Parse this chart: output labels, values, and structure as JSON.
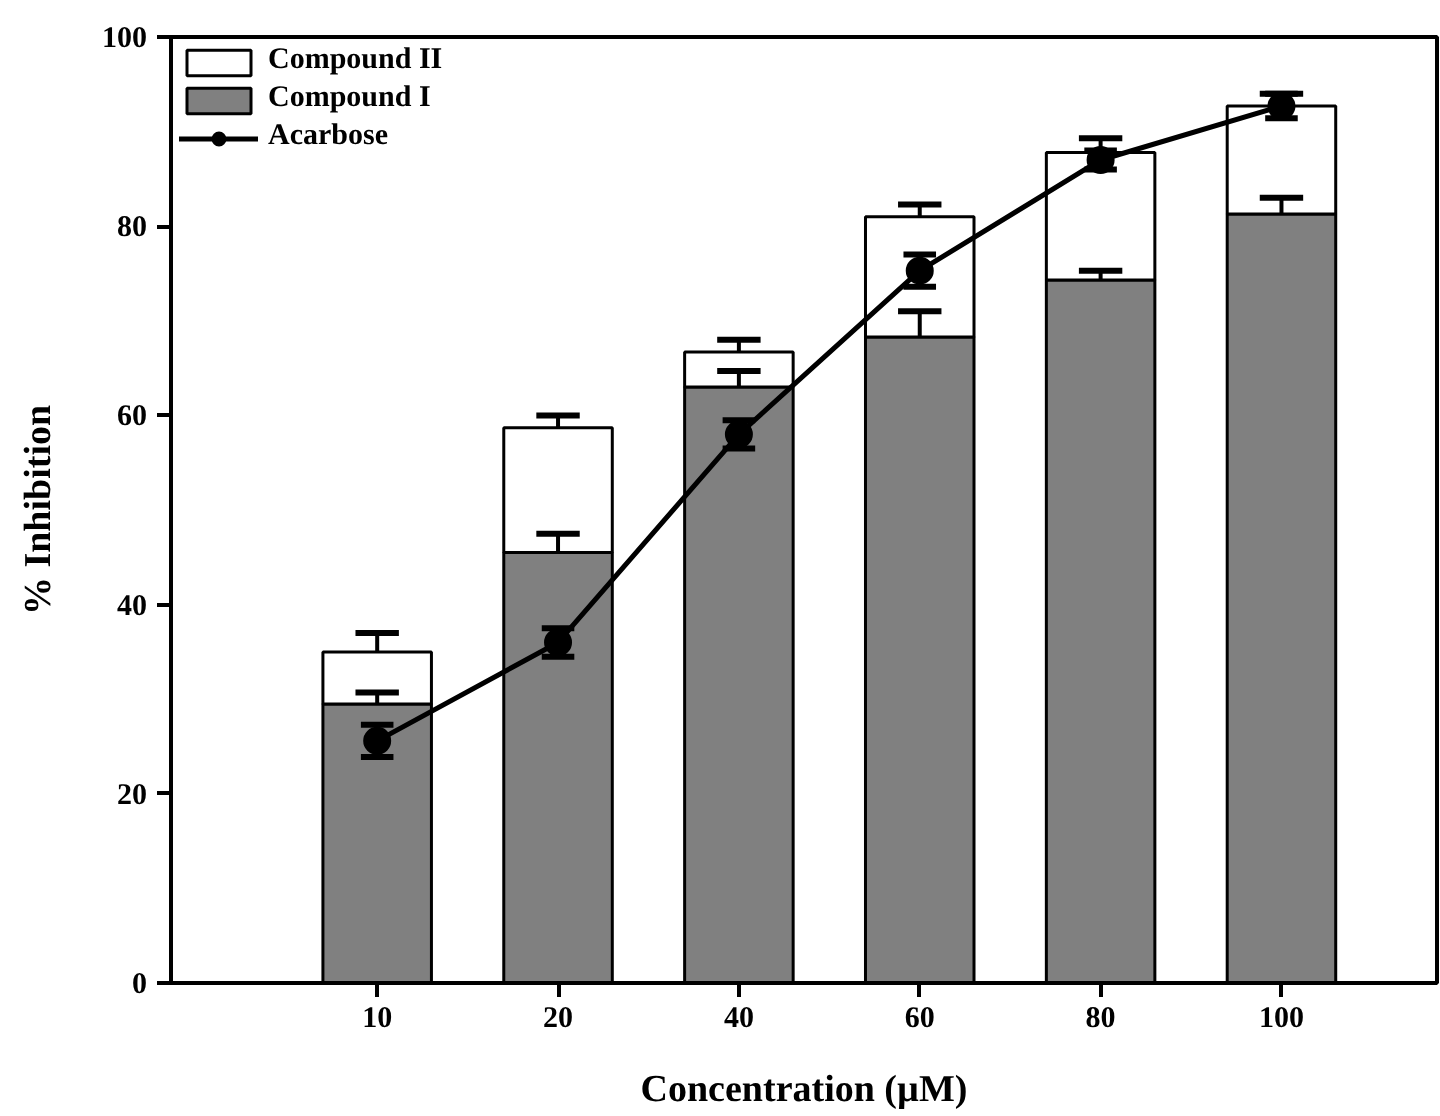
{
  "chart_data": {
    "type": "bar",
    "xlabel": "Concentration (µM)",
    "ylabel": "% Inhibition",
    "categories": [
      "10",
      "20",
      "40",
      "60",
      "80",
      "100"
    ],
    "stacked": true,
    "ylim": [
      0,
      100
    ],
    "yticks": [
      0,
      20,
      40,
      60,
      80,
      100
    ],
    "grid": false,
    "legend": "top left",
    "series": [
      {
        "name": "Compound I",
        "color": "#808080",
        "values": [
          29.5,
          45.5,
          63.0,
          68.3,
          74.3,
          81.3
        ],
        "errors": [
          [
            29.5,
            30.7
          ],
          [
            45.5,
            47.5
          ],
          [
            63.0,
            64.7
          ],
          [
            68.3,
            71.0
          ],
          [
            74.3,
            75.3
          ],
          [
            81.3,
            83.0
          ]
        ]
      },
      {
        "name": "Compound II",
        "color": "#ffffff",
        "values": [
          5.5,
          13.2,
          3.7,
          12.7,
          13.5,
          11.4
        ],
        "errors": [
          [
            35.0,
            37.0
          ],
          [
            58.7,
            60.0
          ],
          [
            66.7,
            68.0
          ],
          [
            81.0,
            82.3
          ],
          [
            87.8,
            89.3
          ],
          [
            92.7,
            94.0
          ]
        ]
      },
      {
        "name": "Acarbose",
        "type": "line",
        "color": "#000000",
        "marker": "circle",
        "line_style": "solid",
        "values": [
          25.6,
          36.0,
          58.0,
          75.3,
          87.0,
          92.7
        ],
        "errors": [
          1.7,
          1.5,
          1.5,
          1.7,
          1.0,
          1.3
        ]
      }
    ]
  }
}
